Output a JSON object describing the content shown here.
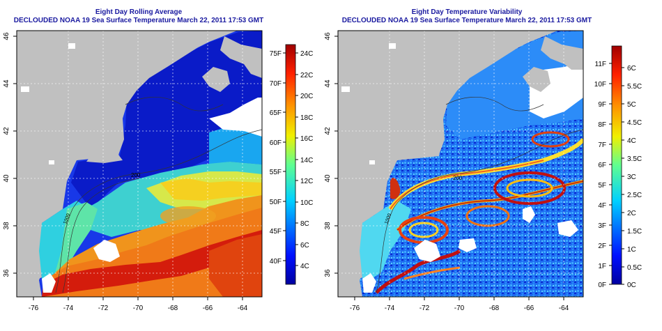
{
  "left_panel": {
    "title_line1": "Eight Day Rolling Average",
    "title_line2": "DECLOUDED NOAA 19 Sea Surface Temperature March 22, 2011 17:53 GMT",
    "x_ticks": [
      "-76",
      "-74",
      "-72",
      "-70",
      "-68",
      "-66",
      "-64"
    ],
    "y_ticks": [
      "36",
      "38",
      "40",
      "42",
      "44",
      "46"
    ],
    "colorbar_f": [
      "75F",
      "70F",
      "65F",
      "60F",
      "55F",
      "50F",
      "45F",
      "40F"
    ],
    "colorbar_c": [
      "24C",
      "22C",
      "20C",
      "18C",
      "16C",
      "14C",
      "12C",
      "10C",
      "8C",
      "6C",
      "4C"
    ],
    "contour_labels": [
      "200",
      "1000",
      "100",
      "200"
    ]
  },
  "right_panel": {
    "title_line1": "Eight Day Temperature Variability",
    "title_line2": "DECLOUDED NOAA 19 Sea Surface Temperature March 22, 2011 17:53 GMT",
    "x_ticks": [
      "-76",
      "-74",
      "-72",
      "-70",
      "-68",
      "-66",
      "-64"
    ],
    "y_ticks": [
      "36",
      "38",
      "40",
      "42",
      "44",
      "46"
    ],
    "colorbar_f": [
      "11F",
      "10F",
      "9F",
      "8F",
      "7F",
      "6F",
      "5F",
      "4F",
      "3F",
      "2F",
      "1F",
      "0F"
    ],
    "colorbar_c": [
      "6C",
      "5.5C",
      "5C",
      "4.5C",
      "4C",
      "3.5C",
      "3C",
      "2.5C",
      "2C",
      "1.5C",
      "1C",
      "0.5C",
      "0C"
    ],
    "contour_labels": [
      "200",
      "1000",
      "100"
    ]
  },
  "colors": {
    "title": "#1a1aa0",
    "land": "#c0c0c0",
    "cloud": "#ffffff"
  }
}
